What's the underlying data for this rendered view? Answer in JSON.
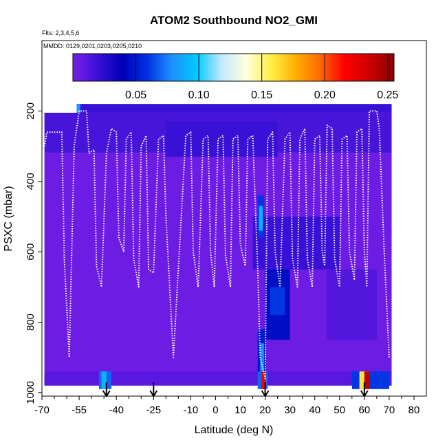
{
  "chart_data": {
    "type": "heatmap",
    "title": "ATOM2 Southbound NO2_GMI",
    "subtitle_flights": "Flts: 2,3,4,5,6",
    "subtitle_dates": "MMDD: 0129,0201,0203,0205,0210",
    "xlabel": "Latitude (deg N)",
    "ylabel": "PSXC (mbar)",
    "xlim": [
      -70,
      85
    ],
    "ylim": [
      1010,
      0
    ],
    "x_ticks": [
      -70,
      -55,
      -40,
      -25,
      -10,
      0,
      10,
      20,
      30,
      40,
      50,
      60,
      70,
      80
    ],
    "x_tick_labels": [
      "-70",
      "-55",
      "-40",
      "-25",
      "-10",
      "0",
      "10",
      "20",
      "30",
      "40",
      "50",
      "60",
      "70",
      "80"
    ],
    "x_minor_ticks": [
      -65,
      -60,
      -50,
      -45,
      -35,
      -30,
      -20,
      -15,
      -5,
      5,
      15,
      25,
      35,
      45,
      55,
      65,
      75
    ],
    "y_ticks": [
      200,
      400,
      600,
      800,
      1000
    ],
    "y_tick_labels": [
      "200",
      "400",
      "600",
      "800",
      "1000"
    ],
    "colorbar": {
      "range": [
        0,
        0.255
      ],
      "ticks": [
        0.05,
        0.1,
        0.15,
        0.2,
        0.25
      ],
      "tick_labels": [
        "0.05",
        "0.10",
        "0.15",
        "0.20",
        "0.25"
      ],
      "colors": [
        "#7a1fe8",
        "#3a10d6",
        "#0000b8",
        "#0030e0",
        "#1e90ff",
        "#00c8ff",
        "#bfe8ff",
        "#ffffe0",
        "#fff04a",
        "#ffb000",
        "#ff6a00",
        "#ff0000",
        "#cc0000",
        "#8b0000"
      ]
    },
    "cells": [
      {
        "lat": [
          -56,
          71
        ],
        "p": [
          180,
          205
        ],
        "value": 0.02
      },
      {
        "lat": [
          -56,
          -54.5
        ],
        "p": [
          180,
          205
        ],
        "value": 0.08
      },
      {
        "lat": [
          -69,
          71
        ],
        "p": [
          205,
          320
        ],
        "value": 0.015
      },
      {
        "lat": [
          -69,
          71
        ],
        "p": [
          320,
          980
        ],
        "value": 0.004
      },
      {
        "lat": [
          -20,
          25
        ],
        "p": [
          230,
          330
        ],
        "value": 0.02
      },
      {
        "lat": [
          15,
          50
        ],
        "p": [
          500,
          650
        ],
        "value": 0.02
      },
      {
        "lat": [
          17,
          19.5
        ],
        "p": [
          440,
          560
        ],
        "value": 0.06
      },
      {
        "lat": [
          17.5,
          19
        ],
        "p": [
          470,
          540
        ],
        "value": 0.09
      },
      {
        "lat": [
          20,
          30
        ],
        "p": [
          650,
          850
        ],
        "value": 0.045
      },
      {
        "lat": [
          22,
          28
        ],
        "p": [
          700,
          780
        ],
        "value": 0.06
      },
      {
        "lat": [
          17,
          20
        ],
        "p": [
          820,
          960
        ],
        "value": 0.05
      },
      {
        "lat": [
          18,
          19.5
        ],
        "p": [
          860,
          950
        ],
        "value": 0.08
      },
      {
        "lat": [
          45,
          65
        ],
        "p": [
          650,
          850
        ],
        "value": 0.012
      },
      {
        "lat": [
          -69,
          71
        ],
        "p": [
          940,
          980
        ],
        "value": 0.01
      },
      {
        "lat": [
          -47,
          -42
        ],
        "p": [
          940,
          990
        ],
        "value": 0.07
      },
      {
        "lat": [
          -46,
          -44
        ],
        "p": [
          940,
          990
        ],
        "value": 0.09
      },
      {
        "lat": [
          17,
          21
        ],
        "p": [
          940,
          990
        ],
        "value": 0.07
      },
      {
        "lat": [
          18.5,
          20
        ],
        "p": [
          940,
          990
        ],
        "value": 0.22
      },
      {
        "lat": [
          55,
          70
        ],
        "p": [
          940,
          990
        ],
        "value": 0.06
      },
      {
        "lat": [
          58,
          62
        ],
        "p": [
          940,
          990
        ],
        "value": 0.16
      },
      {
        "lat": [
          60,
          62
        ],
        "p": [
          940,
          990
        ],
        "value": 0.24
      }
    ],
    "flight_track": [
      [
        -69,
        300
      ],
      [
        -68,
        260
      ],
      [
        -62,
        260
      ],
      [
        -61,
        620
      ],
      [
        -59,
        900
      ],
      [
        -57,
        300
      ],
      [
        -55,
        200
      ],
      [
        -52,
        200
      ],
      [
        -51,
        320
      ],
      [
        -49,
        310
      ],
      [
        -48,
        640
      ],
      [
        -46,
        700
      ],
      [
        -44,
        320
      ],
      [
        -42,
        250
      ],
      [
        -40,
        260
      ],
      [
        -39,
        560
      ],
      [
        -37,
        600
      ],
      [
        -36,
        280
      ],
      [
        -34,
        260
      ],
      [
        -33,
        620
      ],
      [
        -31,
        700
      ],
      [
        -30,
        300
      ],
      [
        -28,
        270
      ],
      [
        -27,
        650
      ],
      [
        -25,
        660
      ],
      [
        -23,
        280
      ],
      [
        -21,
        270
      ],
      [
        -20,
        500
      ],
      [
        -17,
        900
      ],
      [
        -12,
        270
      ],
      [
        -10,
        260
      ],
      [
        -9,
        600
      ],
      [
        -7,
        700
      ],
      [
        -5,
        280
      ],
      [
        -3,
        270
      ],
      [
        -2,
        600
      ],
      [
        -0.5,
        700
      ],
      [
        1,
        280
      ],
      [
        3,
        270
      ],
      [
        4,
        610
      ],
      [
        6,
        700
      ],
      [
        7,
        280
      ],
      [
        9,
        270
      ],
      [
        10,
        580
      ],
      [
        12,
        640
      ],
      [
        13,
        280
      ],
      [
        15,
        270
      ],
      [
        17,
        650
      ],
      [
        18,
        900
      ],
      [
        20,
        960
      ],
      [
        21,
        280
      ],
      [
        23,
        260
      ],
      [
        24,
        600
      ],
      [
        26,
        700
      ],
      [
        28,
        280
      ],
      [
        30,
        260
      ],
      [
        31,
        620
      ],
      [
        33,
        700
      ],
      [
        34,
        280
      ],
      [
        36,
        250
      ],
      [
        37,
        620
      ],
      [
        39,
        700
      ],
      [
        40,
        280
      ],
      [
        42,
        270
      ],
      [
        43,
        600
      ],
      [
        44,
        640
      ],
      [
        45,
        240
      ],
      [
        47,
        250
      ],
      [
        48,
        620
      ],
      [
        50,
        700
      ],
      [
        51,
        280
      ],
      [
        53,
        270
      ],
      [
        54,
        600
      ],
      [
        56,
        680
      ],
      [
        57,
        260
      ],
      [
        59,
        250
      ],
      [
        60,
        600
      ],
      [
        61,
        700
      ],
      [
        62,
        200
      ],
      [
        65,
        200
      ],
      [
        66,
        250
      ],
      [
        68,
        600
      ],
      [
        70,
        900
      ]
    ],
    "arrows": [
      -44,
      -25,
      20,
      60
    ]
  }
}
